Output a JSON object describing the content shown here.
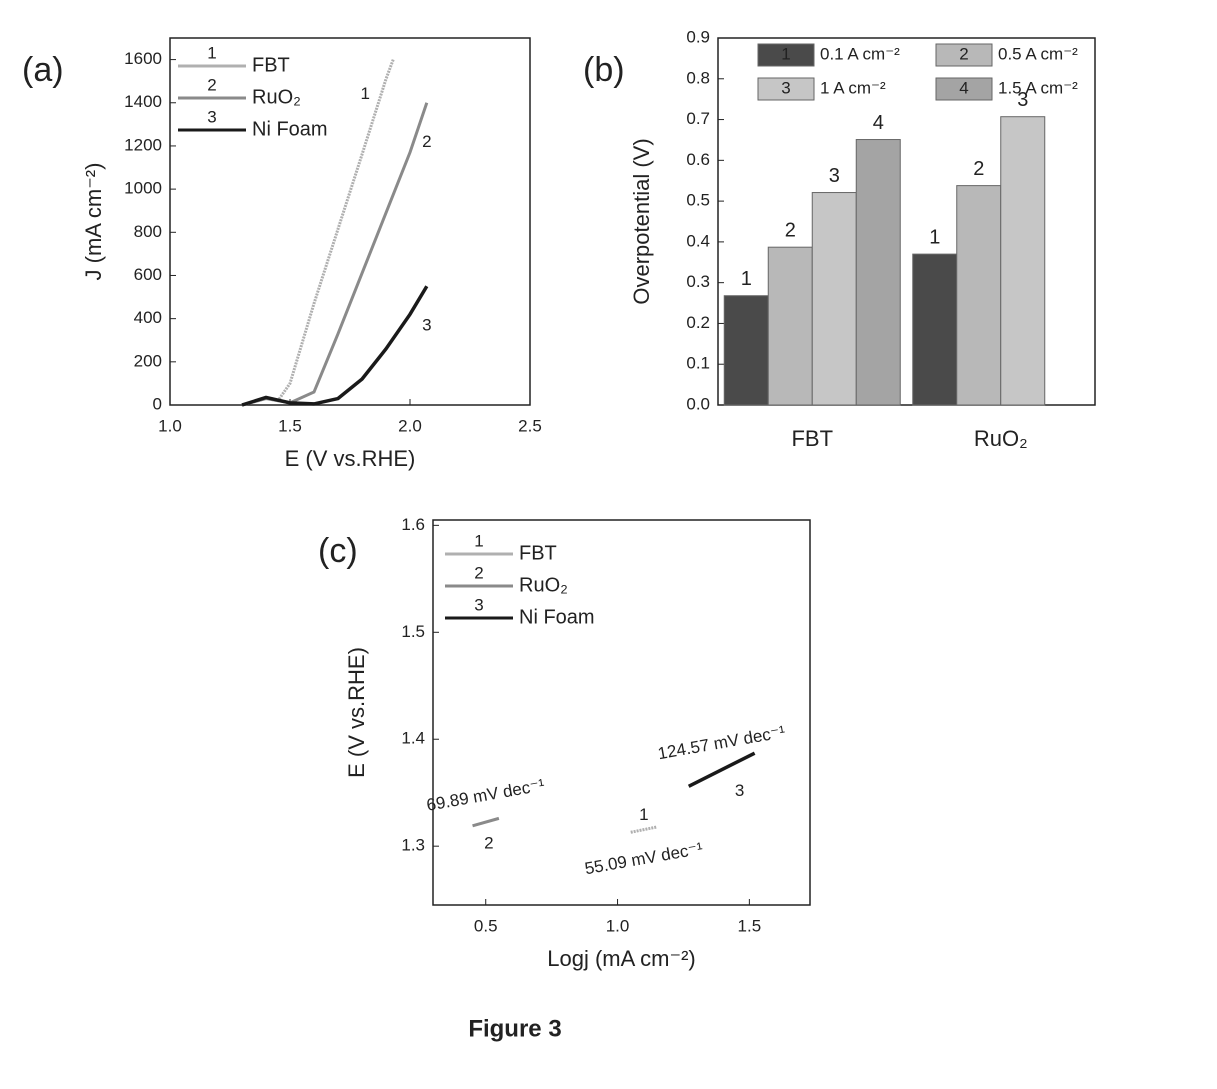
{
  "charts": [
    {
      "type": "line",
      "panel": "(a)",
      "xlabel": "E (V vs.RHE)",
      "ylabel": "J (mA cm⁻²)",
      "xlim": [
        1,
        2.5
      ],
      "xticks": [
        {
          "value": 1,
          "label": "1.0"
        },
        1.5,
        {
          "value": 2,
          "label": "2.0"
        },
        2.5
      ],
      "ylim": [
        0,
        1700
      ],
      "yticks": [
        0,
        200,
        400,
        600,
        800,
        1000,
        1200,
        1400,
        1600
      ],
      "series": [
        {
          "name": "FBT",
          "tag": "1",
          "color": "#b0b0b0",
          "x": [
            1.3,
            1.4,
            1.45,
            1.5,
            1.6,
            1.7,
            1.8,
            1.9,
            1.93
          ],
          "values": [
            0,
            30,
            20,
            100,
            470,
            815,
            1160,
            1510,
            1600
          ]
        },
        {
          "name": "RuO₂",
          "tag": "2",
          "color": "#8a8a8a",
          "x": [
            1.3,
            1.4,
            1.5,
            1.6,
            1.7,
            1.8,
            1.9,
            2.0,
            2.07
          ],
          "values": [
            0,
            30,
            10,
            60,
            330,
            610,
            890,
            1170,
            1400
          ]
        },
        {
          "name": "Ni Foam",
          "tag": "3",
          "color": "#1a1a1a",
          "x": [
            1.3,
            1.4,
            1.5,
            1.6,
            1.7,
            1.8,
            1.9,
            2.0,
            2.07
          ],
          "values": [
            0,
            35,
            10,
            5,
            30,
            120,
            260,
            420,
            550
          ]
        }
      ]
    },
    {
      "type": "bar",
      "panel": "(b)",
      "ylabel": "Overpotential (V)",
      "categories": [
        "FBT",
        "RuO₂"
      ],
      "ylim": [
        0,
        0.9
      ],
      "yticks": [
        {
          "value": 0,
          "label": "0.0"
        },
        0.1,
        0.2,
        0.3,
        0.4,
        0.5,
        0.6,
        0.7,
        0.8,
        0.9
      ],
      "series": [
        {
          "name": "0.1 A cm⁻²",
          "tag": "1",
          "color": "#4a4a4a",
          "values": [
            0.268,
            0.37
          ]
        },
        {
          "name": "0.5 A cm⁻²",
          "tag": "2",
          "color": "#b8b8b8",
          "values": [
            0.387,
            0.538
          ]
        },
        {
          "name": "1 A cm⁻²",
          "tag": "3",
          "color": "#c6c6c6",
          "values": [
            0.521,
            0.707
          ]
        },
        {
          "name": "1.5 A cm⁻²",
          "tag": "4",
          "color": "#a4a4a4",
          "values": [
            0.651,
            null
          ]
        }
      ]
    },
    {
      "type": "line",
      "panel": "(c)",
      "xlabel": "Logj (mA cm⁻²)",
      "ylabel": "E (V vs.RHE)",
      "xlim": [
        0.3,
        1.73
      ],
      "xticks": [
        0.5,
        {
          "value": 1,
          "label": "1.0"
        },
        1.5
      ],
      "ylim": [
        1.245,
        1.605
      ],
      "yticks": [
        1.3,
        1.4,
        1.5,
        1.6
      ],
      "series": [
        {
          "name": "FBT",
          "tag": "1",
          "color": "#b0b0b0",
          "slope_label": "55.09 mV dec⁻¹",
          "x": [
            1.05,
            1.15
          ],
          "values": [
            1.313,
            1.318
          ]
        },
        {
          "name": "RuO₂",
          "tag": "2",
          "color": "#8a8a8a",
          "slope_label": "69.89 mV dec⁻¹",
          "x": [
            0.45,
            0.55
          ],
          "values": [
            1.319,
            1.326
          ]
        },
        {
          "name": "Ni Foam",
          "tag": "3",
          "color": "#1a1a1a",
          "slope_label": "124.57 mV dec⁻¹",
          "x": [
            1.27,
            1.52
          ],
          "values": [
            1.356,
            1.387
          ]
        }
      ]
    }
  ],
  "caption": "Figure 3"
}
